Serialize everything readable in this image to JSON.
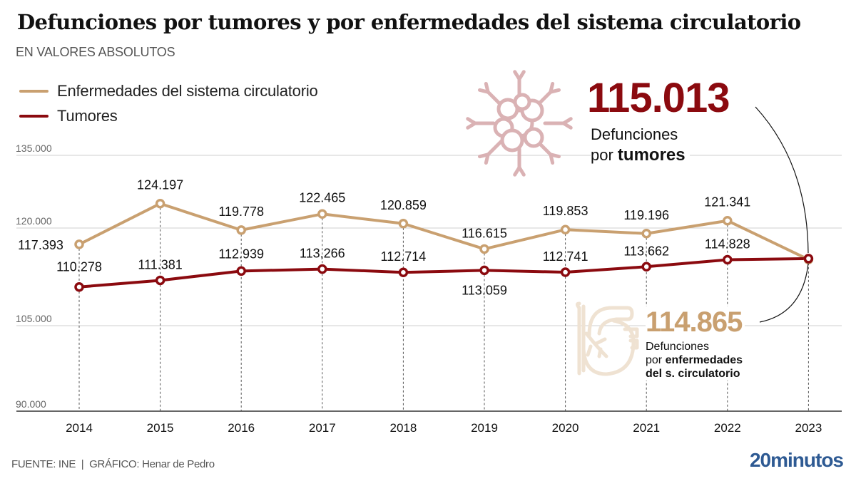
{
  "header": {
    "title": "Defunciones por tumores y por enfermedades del sistema circulatorio",
    "subtitle": "EN VALORES ABSOLUTOS"
  },
  "colors": {
    "circulatorio": "#c9a070",
    "tumores": "#8b0a0f",
    "tumor_icon": "#d9aeb1",
    "heart_icon": "#efe2d2",
    "grid": "#cfcfcf",
    "brand": "#2e5a93"
  },
  "legend": [
    {
      "key": "circulatorio",
      "label": "Enfermedades del sistema circulatorio"
    },
    {
      "key": "tumores",
      "label": "Tumores"
    }
  ],
  "annotations": {
    "tumores": {
      "value": "115.013",
      "line1": "Defunciones",
      "line2_prefix": "por ",
      "line2_bold": "tumores",
      "icon": "tumor-cell-icon"
    },
    "circulatorio": {
      "value": "114.865",
      "line1": "Defunciones",
      "line2_prefix": "por ",
      "line2_bold": "enfermedades",
      "line3_bold": "del s. circulatorio",
      "icon": "heart-icon"
    }
  },
  "footer": {
    "source": "FUENTE: INE  |  GRÁFICO: Henar de Pedro",
    "brand": "20minutos"
  },
  "chart_data": {
    "type": "line",
    "title": "Defunciones por tumores y por enfermedades del sistema circulatorio",
    "subtitle": "EN VALORES ABSOLUTOS",
    "xlabel": "",
    "ylabel": "",
    "x": [
      "2014",
      "2015",
      "2016",
      "2017",
      "2018",
      "2019",
      "2020",
      "2021",
      "2022",
      "2023"
    ],
    "yticks": [
      {
        "value": 135000,
        "label": "135.000"
      },
      {
        "value": 120000,
        "label": "120.000"
      },
      {
        "value": 105000,
        "label": "105.000"
      },
      {
        "value": 90000,
        "label": "90.000"
      }
    ],
    "ylim": [
      90000,
      135000
    ],
    "grid": true,
    "legend_position": "top-left",
    "series": [
      {
        "name": "Enfermedades del sistema circulatorio",
        "key": "circulatorio",
        "values": [
          117393,
          124197,
          119778,
          122465,
          120859,
          116615,
          119853,
          119196,
          121341,
          114865
        ],
        "labels": [
          "117.393",
          "124.197",
          "119.778",
          "122.465",
          "120.859",
          "116.615",
          "119.853",
          "119.196",
          "121.341",
          ""
        ]
      },
      {
        "name": "Tumores",
        "key": "tumores",
        "values": [
          110278,
          111381,
          112939,
          113266,
          112714,
          113059,
          112741,
          113662,
          114828,
          115013
        ],
        "labels": [
          "110.278",
          "111.381",
          "112.939",
          "113,266",
          "112.714",
          "113.059",
          "112.741",
          "113.662",
          "114.828",
          ""
        ]
      }
    ],
    "callouts": [
      {
        "series": "Tumores",
        "x": "2023",
        "value": 115013,
        "label": "115.013"
      },
      {
        "series": "Enfermedades del sistema circulatorio",
        "x": "2023",
        "value": 114865,
        "label": "114.865"
      }
    ]
  }
}
